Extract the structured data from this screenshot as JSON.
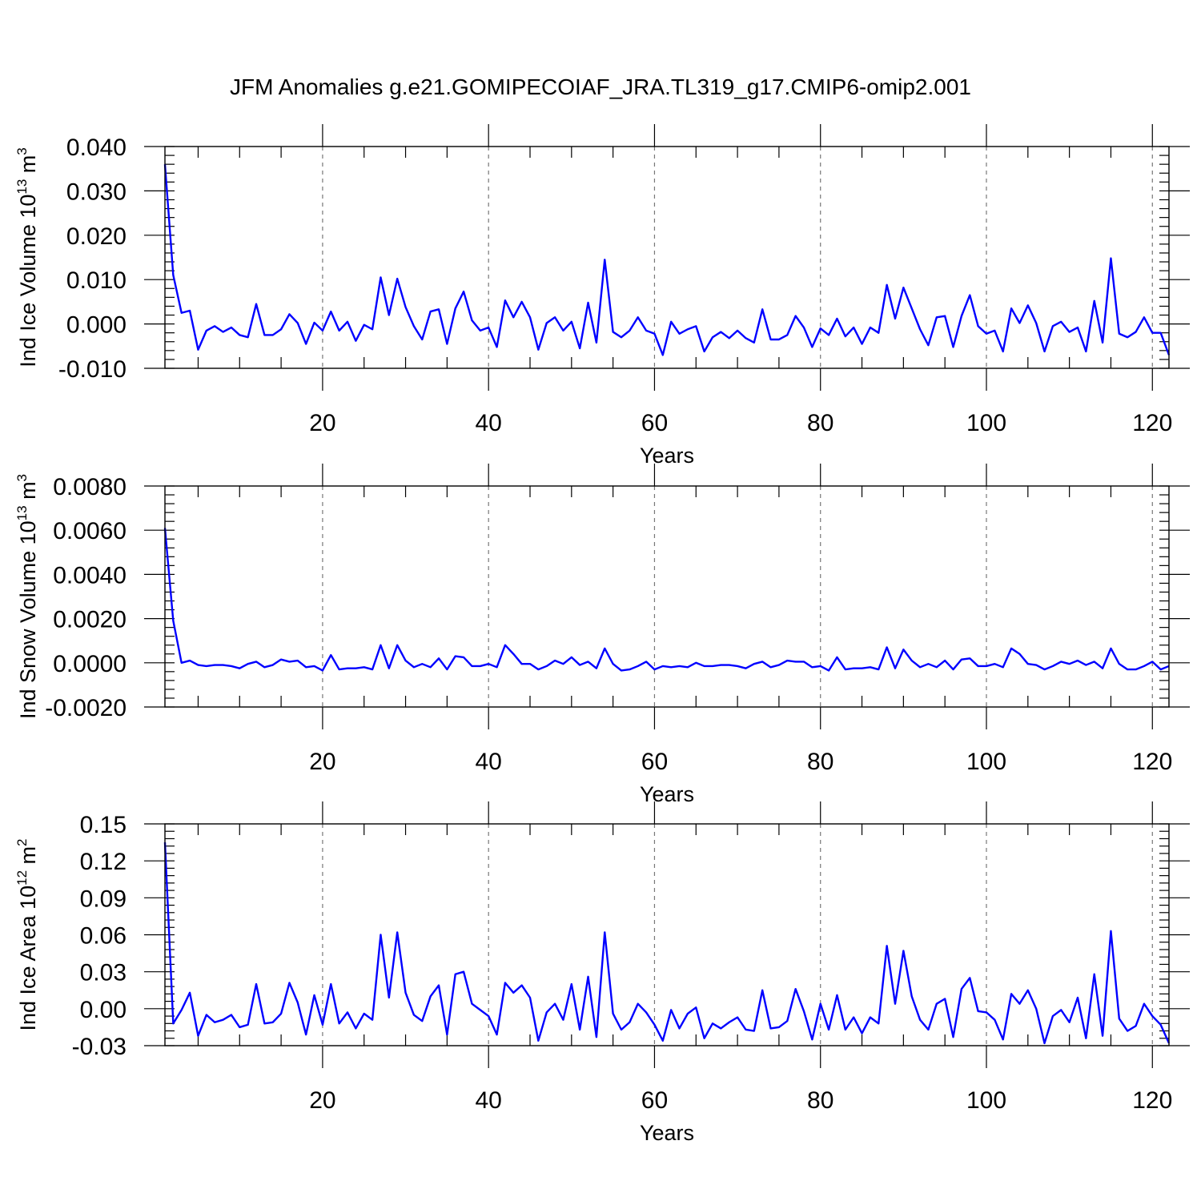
{
  "title": "JFM Anomalies g.e21.GOMIPECOIAF_JRA.TL319_g17.CMIP6-omip2.001",
  "colors": {
    "series": "#0000ff",
    "frame": "#000000",
    "grid": "#777777"
  },
  "chart_data": [
    {
      "type": "line",
      "name": "ice-volume",
      "title": "JFM Anomalies g.e21.GOMIPECOIAF_JRA.TL319_g17.CMIP6-omip2.001",
      "xlabel": "Years",
      "ylabel": {
        "text": "Ind Ice Volume 10",
        "sup": "13",
        "unit": " m",
        "unit_sup": "3"
      },
      "xlim": [
        1,
        122
      ],
      "ylim": [
        -0.01,
        0.04
      ],
      "xticks": [
        20,
        40,
        60,
        80,
        100,
        120
      ],
      "xtick_labels": [
        "20",
        "40",
        "60",
        "80",
        "100",
        "120"
      ],
      "yticks": [
        -0.01,
        0.0,
        0.01,
        0.02,
        0.03,
        0.04
      ],
      "ytick_labels": [
        "-0.010",
        "0.000",
        "0.010",
        "0.020",
        "0.030",
        "0.040"
      ],
      "y_minor_step": 0.002,
      "grid": "vertical dashed at major x ticks",
      "series": [
        {
          "name": "Ind Ice Volume",
          "values": [
            0.036,
            0.011,
            0.0025,
            0.003,
            -0.0058,
            -0.0015,
            -0.0005,
            -0.0018,
            -0.0008,
            -0.0025,
            -0.003,
            0.0045,
            -0.0025,
            -0.0025,
            -0.0012,
            0.0022,
            0.0002,
            -0.0045,
            0.0003,
            -0.0015,
            0.0028,
            -0.0015,
            0.0005,
            -0.0038,
            -0.0002,
            -0.0012,
            0.0105,
            0.002,
            0.0102,
            0.0038,
            -0.0005,
            -0.0035,
            0.0028,
            0.0033,
            -0.0045,
            0.0035,
            0.0073,
            0.0008,
            -0.0015,
            -0.0008,
            -0.0052,
            0.0053,
            0.0015,
            0.005,
            0.0015,
            -0.0058,
            0.0002,
            0.0015,
            -0.0015,
            0.0005,
            -0.0055,
            0.0048,
            -0.0042,
            0.0145,
            -0.0018,
            -0.003,
            -0.0015,
            0.0015,
            -0.0015,
            -0.0022,
            -0.007,
            0.0005,
            -0.0022,
            -0.0012,
            -0.0005,
            -0.0062,
            -0.003,
            -0.0018,
            -0.0032,
            -0.0015,
            -0.0032,
            -0.0042,
            0.0033,
            -0.0035,
            -0.0035,
            -0.0025,
            0.0018,
            -0.0008,
            -0.0052,
            -0.001,
            -0.0025,
            0.0012,
            -0.0028,
            -0.0008,
            -0.0045,
            -0.0008,
            -0.002,
            0.0088,
            0.0012,
            0.0082,
            0.0035,
            -0.0012,
            -0.0048,
            0.0015,
            0.0018,
            -0.0052,
            0.0018,
            0.0065,
            -0.0005,
            -0.0022,
            -0.0015,
            -0.0062,
            0.0035,
            0.0002,
            0.0042,
            0.0002,
            -0.0062,
            -0.0005,
            0.0005,
            -0.0018,
            -0.0008,
            -0.0062,
            0.0052,
            -0.0042,
            0.0148,
            -0.0022,
            -0.003,
            -0.0018,
            0.0015,
            -0.002,
            -0.002,
            -0.007
          ]
        }
      ]
    },
    {
      "type": "line",
      "name": "snow-volume",
      "xlabel": "Years",
      "ylabel": {
        "text": "Ind Snow Volume 10",
        "sup": "13",
        "unit": " m",
        "unit_sup": "3"
      },
      "xlim": [
        1,
        122
      ],
      "ylim": [
        -0.002,
        0.008
      ],
      "xticks": [
        20,
        40,
        60,
        80,
        100,
        120
      ],
      "xtick_labels": [
        "20",
        "40",
        "60",
        "80",
        "100",
        "120"
      ],
      "yticks": [
        -0.002,
        0.0,
        0.002,
        0.004,
        0.006,
        0.008
      ],
      "ytick_labels": [
        "-0.0020",
        "0.0000",
        "0.0020",
        "0.0040",
        "0.0060",
        "0.0080"
      ],
      "y_minor_step": 0.0004,
      "grid": "vertical dashed at major x ticks",
      "series": [
        {
          "name": "Ind Snow Volume",
          "values": [
            0.0061,
            0.0019,
            0.0,
            0.0001,
            -0.0001,
            -0.00015,
            -0.0001,
            -0.0001,
            -0.00015,
            -0.00025,
            -5e-05,
            5e-05,
            -0.0002,
            -0.0001,
            0.00015,
            5e-05,
            0.0001,
            -0.0002,
            -0.00015,
            -0.00035,
            0.00035,
            -0.0003,
            -0.00025,
            -0.00025,
            -0.0002,
            -0.0003,
            0.0008,
            -0.00025,
            0.0008,
            0.0001,
            -0.0002,
            -5e-05,
            -0.0002,
            0.0002,
            -0.0003,
            0.0003,
            0.00025,
            -0.00015,
            -0.00015,
            -5e-05,
            -0.0002,
            0.0008,
            0.0004,
            -5e-05,
            -5e-05,
            -0.0003,
            -0.00015,
            0.0001,
            -5e-05,
            0.00025,
            -0.0001,
            5e-05,
            -0.00025,
            0.00065,
            -5e-05,
            -0.00035,
            -0.0003,
            -0.00015,
            5e-05,
            -0.0003,
            -0.00015,
            -0.0002,
            -0.00015,
            -0.0002,
            0.0,
            -0.00015,
            -0.00015,
            -0.0001,
            -0.0001,
            -0.00015,
            -0.00025,
            -5e-05,
            5e-05,
            -0.0002,
            -0.0001,
            0.0001,
            5e-05,
            5e-05,
            -0.0002,
            -0.00015,
            -0.00035,
            0.00025,
            -0.0003,
            -0.00025,
            -0.00025,
            -0.0002,
            -0.0003,
            0.0007,
            -0.00025,
            0.0006,
            0.0001,
            -0.0002,
            -5e-05,
            -0.0002,
            0.0001,
            -0.0003,
            0.00015,
            0.0002,
            -0.00015,
            -0.00015,
            -5e-05,
            -0.0002,
            0.00065,
            0.0004,
            -5e-05,
            -0.0001,
            -0.0003,
            -0.00015,
            5e-05,
            -5e-05,
            0.0001,
            -0.0001,
            5e-05,
            -0.00025,
            0.00065,
            -5e-05,
            -0.0003,
            -0.0003,
            -0.00015,
            5e-05,
            -0.0003,
            -0.00015
          ]
        }
      ]
    },
    {
      "type": "line",
      "name": "ice-area",
      "xlabel": "Years",
      "ylabel": {
        "text": "Ind Ice Area 10",
        "sup": "12",
        "unit": " m",
        "unit_sup": "2"
      },
      "xlim": [
        1,
        122
      ],
      "ylim": [
        -0.03,
        0.15
      ],
      "xticks": [
        20,
        40,
        60,
        80,
        100,
        120
      ],
      "xtick_labels": [
        "20",
        "40",
        "60",
        "80",
        "100",
        "120"
      ],
      "yticks": [
        -0.03,
        0.0,
        0.03,
        0.06,
        0.09,
        0.12,
        0.15
      ],
      "ytick_labels": [
        "-0.03",
        "0.00",
        "0.03",
        "0.06",
        "0.09",
        "0.12",
        "0.15"
      ],
      "y_minor_step": 0.006,
      "grid": "vertical dashed at major x ticks",
      "series": [
        {
          "name": "Ind Ice Area",
          "values": [
            0.135,
            -0.012,
            -0.001,
            0.013,
            -0.022,
            -0.005,
            -0.011,
            -0.009,
            -0.005,
            -0.015,
            -0.013,
            0.02,
            -0.012,
            -0.011,
            -0.004,
            0.021,
            0.005,
            -0.021,
            0.011,
            -0.013,
            0.02,
            -0.012,
            -0.003,
            -0.016,
            -0.004,
            -0.009,
            0.06,
            0.009,
            0.062,
            0.013,
            -0.005,
            -0.01,
            0.01,
            0.019,
            -0.021,
            0.028,
            0.03,
            0.004,
            -0.001,
            -0.006,
            -0.021,
            0.021,
            0.013,
            0.019,
            0.009,
            -0.026,
            -0.003,
            0.004,
            -0.009,
            0.02,
            -0.017,
            0.026,
            -0.023,
            0.062,
            -0.004,
            -0.017,
            -0.011,
            0.004,
            -0.003,
            -0.013,
            -0.026,
            -0.001,
            -0.016,
            -0.004,
            0.001,
            -0.024,
            -0.012,
            -0.016,
            -0.011,
            -0.007,
            -0.017,
            -0.018,
            0.015,
            -0.016,
            -0.015,
            -0.01,
            0.016,
            -0.002,
            -0.025,
            0.004,
            -0.017,
            0.011,
            -0.017,
            -0.007,
            -0.02,
            -0.007,
            -0.012,
            0.051,
            0.004,
            0.047,
            0.01,
            -0.009,
            -0.017,
            0.004,
            0.008,
            -0.023,
            0.016,
            0.025,
            -0.002,
            -0.003,
            -0.009,
            -0.025,
            0.012,
            0.004,
            0.015,
            0.0,
            -0.028,
            -0.006,
            -0.001,
            -0.011,
            0.009,
            -0.024,
            0.028,
            -0.022,
            0.063,
            -0.008,
            -0.018,
            -0.014,
            0.004,
            -0.006,
            -0.013,
            -0.028
          ]
        }
      ]
    }
  ]
}
